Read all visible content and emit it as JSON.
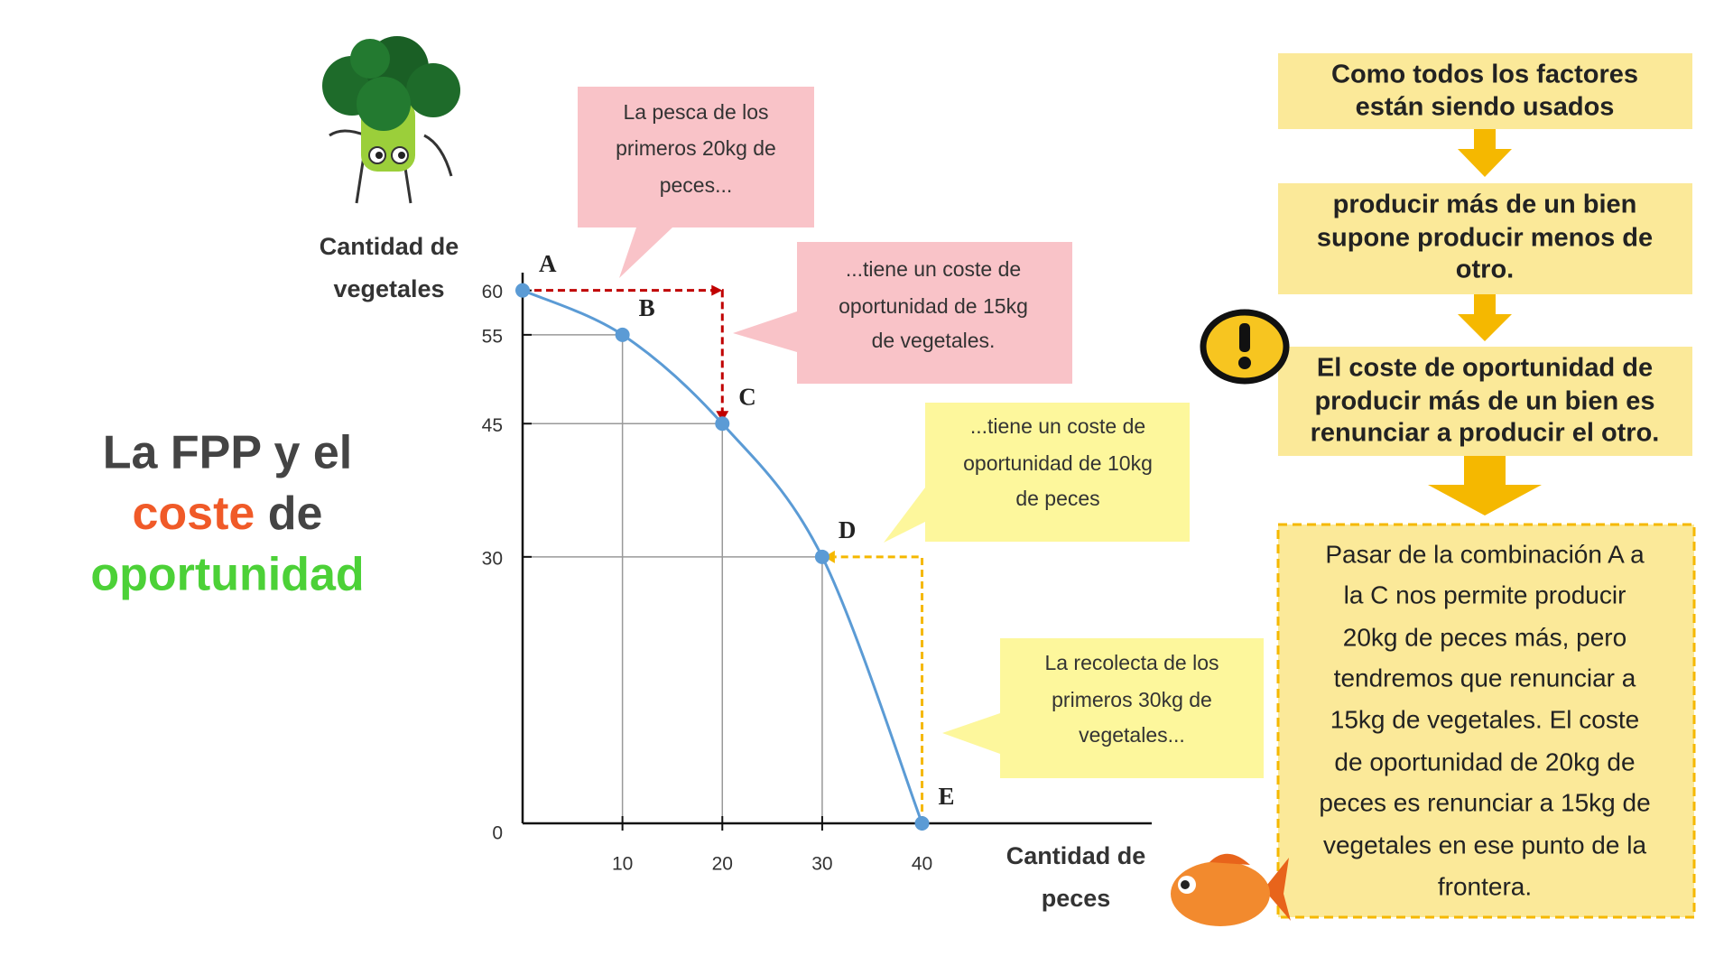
{
  "title": [
    "La FPP y el",
    "coste",
    "de",
    "oportunidad"
  ],
  "chart_data": {
    "type": "line",
    "y_label": [
      "Cantidad de",
      "vegetales"
    ],
    "x_label": [
      "Cantidad de",
      "peces"
    ],
    "x": [
      0,
      10,
      20,
      30,
      40
    ],
    "series": [
      {
        "color": "#5b9bd5",
        "values": [
          60,
          55,
          45,
          30,
          0
        ]
      }
    ],
    "point_labels": [
      "A",
      "B",
      "C",
      "D",
      "E"
    ],
    "xlim": [
      0,
      63
    ],
    "ylim": [
      0,
      62
    ],
    "xticks": [
      10,
      20,
      30,
      40
    ],
    "yticks": [
      0,
      30,
      45,
      55,
      60
    ]
  },
  "callouts": [
    [
      "La pesca de los",
      "primeros 20kg de",
      "peces..."
    ],
    [
      "...tiene un coste de",
      "oportunidad de 15kg",
      "de vegetales."
    ],
    [
      "...tiene un coste de",
      "oportunidad de 10kg",
      "de peces"
    ],
    [
      "La recolecta de los",
      "primeros 30kg de",
      "vegetales..."
    ]
  ],
  "flow": [
    [
      "Como todos los factores",
      "están siendo usados"
    ],
    [
      "producir más de un bien",
      "supone producir menos de",
      "otro."
    ],
    [
      "El coste de oportunidad de",
      "producir más de un bien es",
      "renunciar a producir el otro."
    ],
    [
      "Pasar de la combinación A a",
      "la C nos permite producir",
      "20kg de peces más, pero",
      "tendremos que renunciar a",
      "15kg de vegetales. El coste",
      "de oportunidad de 20kg de",
      "peces es renunciar a 15kg de",
      "vegetales en ese punto de la",
      "frontera."
    ]
  ]
}
